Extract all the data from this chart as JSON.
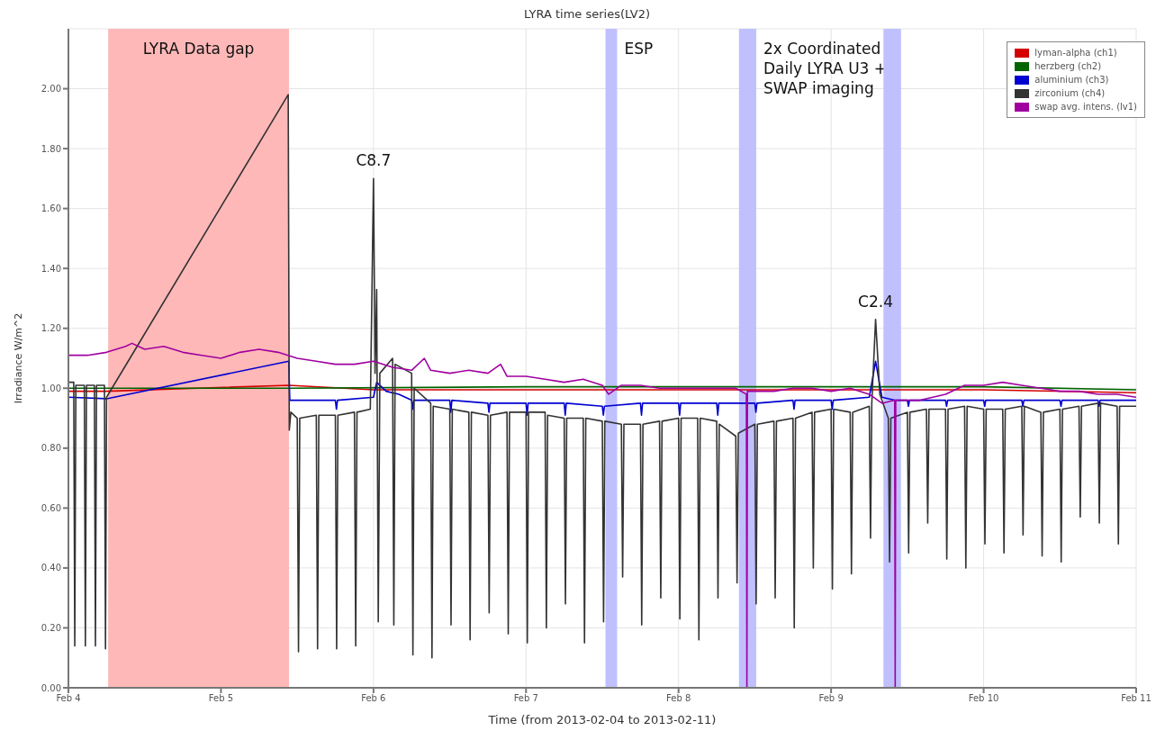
{
  "chart_data": {
    "type": "line",
    "title": "LYRA time series(LV2)",
    "xlabel": "Time (from 2013-02-04 to 2013-02-11)",
    "ylabel": "Irradiance W/m^2",
    "xlim": [
      "2013-02-04",
      "2013-02-11"
    ],
    "xticks": [
      {
        "value": "2013-02-04",
        "label": "Feb 4"
      },
      {
        "value": "2013-02-05",
        "label": "Feb 5"
      },
      {
        "value": "2013-02-06",
        "label": "Feb 6"
      },
      {
        "value": "2013-02-07",
        "label": "Feb 7"
      },
      {
        "value": "2013-02-08",
        "label": "Feb 8"
      },
      {
        "value": "2013-02-09",
        "label": "Feb 9"
      },
      {
        "value": "2013-02-10",
        "label": "Feb 10"
      },
      {
        "value": "2013-02-11",
        "label": "Feb 11"
      }
    ],
    "ylim": [
      0,
      2.2
    ],
    "yticks": [
      {
        "value": 0,
        "label": "0.00"
      },
      {
        "value": 0.2,
        "label": "0.20"
      },
      {
        "value": 0.4,
        "label": "0.40"
      },
      {
        "value": 0.6,
        "label": "0.60"
      },
      {
        "value": 0.8,
        "label": "0.80"
      },
      {
        "value": 1,
        "label": "1.00"
      },
      {
        "value": 1.2,
        "label": "1.20"
      },
      {
        "value": 1.4,
        "label": "1.40"
      },
      {
        "value": 1.6,
        "label": "1.60"
      },
      {
        "value": 1.8,
        "label": "1.80"
      },
      {
        "value": 2,
        "label": "2.00"
      }
    ],
    "grid": true,
    "legend": "top right",
    "bands": [
      {
        "axis": "x",
        "from": "2013-02-04T06:15",
        "to": "2013-02-05T10:42",
        "label": "LYRA Data gap",
        "color": "#ffb8b8"
      },
      {
        "axis": "x",
        "from": "2013-02-07T12:30",
        "to": "2013-02-07T14:20",
        "label": "ESP",
        "color": "#c0c0ff"
      },
      {
        "axis": "x",
        "from": "2013-02-08T09:30",
        "to": "2013-02-08T12:13",
        "label": "2x Coordinated Daily LYRA U3 + SWAP imaging",
        "color": "#c0c0ff"
      },
      {
        "axis": "x",
        "from": "2013-02-09T08:14",
        "to": "2013-02-09T11:00",
        "label": null,
        "color": "#c0c0ff"
      }
    ],
    "annotations": [
      {
        "text": "C8.7",
        "x": "2013-02-06T00:00",
        "y": 1.7
      },
      {
        "text": "C2.4",
        "x": "2013-02-09T07:00",
        "y": 1.23
      }
    ],
    "series": [
      {
        "name": "lyman-alpha (ch1)",
        "color": "#d40000",
        "x": [
          "2013-02-04T00:00",
          "2013-02-04T06:00",
          "2013-02-05T10:40",
          "2013-02-06T00:00",
          "2013-02-08T00:00",
          "2013-02-09T00:00",
          "2013-02-10T00:00",
          "2013-02-11T00:00"
        ],
        "values": [
          0.99,
          0.99,
          1.01,
          0.995,
          0.995,
          0.995,
          0.995,
          0.985
        ]
      },
      {
        "name": "herzberg (ch2)",
        "color": "#006400",
        "x": [
          "2013-02-04T00:00",
          "2013-02-05T10:40",
          "2013-02-07T00:00",
          "2013-02-09T00:00",
          "2013-02-10T00:00",
          "2013-02-11T00:00"
        ],
        "values": [
          1.0,
          1.0,
          1.005,
          1.005,
          1.005,
          0.995
        ]
      },
      {
        "name": "aluminium (ch3)",
        "color": "#0000d0",
        "x": [
          "2013-02-04T00:00",
          "2013-02-04T06:00",
          "2013-02-05T10:40",
          "2013-02-05T10:50",
          "2013-02-05T12:00",
          "2013-02-05T18:00",
          "2013-02-05T18:10",
          "2013-02-05T18:20",
          "2013-02-06T00:00",
          "2013-02-06T00:30",
          "2013-02-06T02:00",
          "2013-02-06T04:00",
          "2013-02-06T06:00",
          "2013-02-06T06:10",
          "2013-02-06T06:20",
          "2013-02-06T12:00",
          "2013-02-06T12:10",
          "2013-02-06T12:20",
          "2013-02-06T18:00",
          "2013-02-06T18:10",
          "2013-02-06T18:20",
          "2013-02-07T00:00",
          "2013-02-07T00:10",
          "2013-02-07T00:20",
          "2013-02-07T06:00",
          "2013-02-07T06:10",
          "2013-02-07T06:20",
          "2013-02-07T12:00",
          "2013-02-07T12:10",
          "2013-02-07T12:20",
          "2013-02-07T18:00",
          "2013-02-07T18:10",
          "2013-02-07T18:20",
          "2013-02-08T00:00",
          "2013-02-08T00:10",
          "2013-02-08T00:20",
          "2013-02-08T06:00",
          "2013-02-08T06:10",
          "2013-02-08T06:20",
          "2013-02-08T12:00",
          "2013-02-08T12:10",
          "2013-02-08T12:20",
          "2013-02-08T18:00",
          "2013-02-08T18:10",
          "2013-02-08T18:20",
          "2013-02-09T00:00",
          "2013-02-09T00:10",
          "2013-02-09T00:20",
          "2013-02-09T06:00",
          "2013-02-09T07:00",
          "2013-02-09T08:00",
          "2013-02-09T10:00",
          "2013-02-09T12:00",
          "2013-02-09T12:10",
          "2013-02-09T12:20",
          "2013-02-09T18:00",
          "2013-02-09T18:10",
          "2013-02-09T18:20",
          "2013-02-10T00:00",
          "2013-02-10T00:10",
          "2013-02-10T00:20",
          "2013-02-10T06:00",
          "2013-02-10T06:10",
          "2013-02-10T06:20",
          "2013-02-10T12:00",
          "2013-02-10T12:10",
          "2013-02-10T12:20",
          "2013-02-10T18:00",
          "2013-02-10T18:10",
          "2013-02-10T18:20",
          "2013-02-11T00:00"
        ],
        "values": [
          0.97,
          0.965,
          1.09,
          0.96,
          0.96,
          0.96,
          0.93,
          0.96,
          0.97,
          1.02,
          0.99,
          0.98,
          0.96,
          0.93,
          0.96,
          0.96,
          0.92,
          0.96,
          0.95,
          0.92,
          0.95,
          0.95,
          0.91,
          0.95,
          0.95,
          0.91,
          0.95,
          0.94,
          0.91,
          0.94,
          0.95,
          0.91,
          0.95,
          0.95,
          0.91,
          0.95,
          0.95,
          0.91,
          0.95,
          0.95,
          0.92,
          0.95,
          0.96,
          0.93,
          0.96,
          0.96,
          0.93,
          0.96,
          0.97,
          1.09,
          0.97,
          0.96,
          0.96,
          0.94,
          0.96,
          0.96,
          0.94,
          0.96,
          0.96,
          0.94,
          0.96,
          0.96,
          0.94,
          0.96,
          0.96,
          0.94,
          0.96,
          0.96,
          0.94,
          0.96,
          0.96
        ]
      },
      {
        "name": "zirconium (ch4)",
        "color": "#333333",
        "x": [
          "2013-02-04T00:00",
          "2013-02-04T00:50",
          "2013-02-04T01:00",
          "2013-02-04T01:10",
          "2013-02-04T02:30",
          "2013-02-04T02:40",
          "2013-02-04T02:50",
          "2013-02-04T04:05",
          "2013-02-04T04:15",
          "2013-02-04T04:25",
          "2013-02-04T05:40",
          "2013-02-04T05:50",
          "2013-02-04T06:00",
          "2013-02-05T10:35",
          "2013-02-05T10:45",
          "2013-02-05T11:00",
          "2013-02-05T12:00",
          "2013-02-05T12:12",
          "2013-02-05T12:24",
          "2013-02-05T15:00",
          "2013-02-05T15:12",
          "2013-02-05T15:24",
          "2013-02-05T18:00",
          "2013-02-05T18:12",
          "2013-02-05T18:24",
          "2013-02-05T21:00",
          "2013-02-05T21:12",
          "2013-02-05T21:24",
          "2013-02-05T23:30",
          "2013-02-06T00:00",
          "2013-02-06T00:15",
          "2013-02-06T00:30",
          "2013-02-06T00:45",
          "2013-02-06T01:00",
          "2013-02-06T03:00",
          "2013-02-06T03:12",
          "2013-02-06T03:24",
          "2013-02-06T06:00",
          "2013-02-06T06:12",
          "2013-02-06T06:24",
          "2013-02-06T09:00",
          "2013-02-06T09:12",
          "2013-02-06T09:24",
          "2013-02-06T12:00",
          "2013-02-06T12:12",
          "2013-02-06T12:24",
          "2013-02-06T15:00",
          "2013-02-06T15:12",
          "2013-02-06T15:24",
          "2013-02-06T18:00",
          "2013-02-06T18:12",
          "2013-02-06T18:24",
          "2013-02-06T21:00",
          "2013-02-06T21:12",
          "2013-02-06T21:24",
          "2013-02-07T00:00",
          "2013-02-07T00:12",
          "2013-02-07T00:24",
          "2013-02-07T03:00",
          "2013-02-07T03:12",
          "2013-02-07T03:24",
          "2013-02-07T06:00",
          "2013-02-07T06:12",
          "2013-02-07T06:24",
          "2013-02-07T09:00",
          "2013-02-07T09:12",
          "2013-02-07T09:24",
          "2013-02-07T12:00",
          "2013-02-07T12:12",
          "2013-02-07T12:24",
          "2013-02-07T15:00",
          "2013-02-07T15:12",
          "2013-02-07T15:24",
          "2013-02-07T18:00",
          "2013-02-07T18:12",
          "2013-02-07T18:24",
          "2013-02-07T21:00",
          "2013-02-07T21:12",
          "2013-02-07T21:24",
          "2013-02-08T00:00",
          "2013-02-08T00:12",
          "2013-02-08T00:24",
          "2013-02-08T03:00",
          "2013-02-08T03:12",
          "2013-02-08T03:24",
          "2013-02-08T06:00",
          "2013-02-08T06:12",
          "2013-02-08T06:24",
          "2013-02-08T09:00",
          "2013-02-08T09:12",
          "2013-02-08T09:24",
          "2013-02-08T12:00",
          "2013-02-08T12:12",
          "2013-02-08T12:24",
          "2013-02-08T15:00",
          "2013-02-08T15:12",
          "2013-02-08T15:24",
          "2013-02-08T18:00",
          "2013-02-08T18:12",
          "2013-02-08T18:24",
          "2013-02-08T21:00",
          "2013-02-08T21:12",
          "2013-02-08T21:24",
          "2013-02-09T00:00",
          "2013-02-09T00:12",
          "2013-02-09T00:24",
          "2013-02-09T03:00",
          "2013-02-09T03:12",
          "2013-02-09T03:24",
          "2013-02-09T06:00",
          "2013-02-09T06:12",
          "2013-02-09T06:24",
          "2013-02-09T07:00",
          "2013-02-09T07:40",
          "2013-02-09T09:00",
          "2013-02-09T09:12",
          "2013-02-09T09:24",
          "2013-02-09T12:00",
          "2013-02-09T12:12",
          "2013-02-09T12:24",
          "2013-02-09T15:00",
          "2013-02-09T15:12",
          "2013-02-09T15:24",
          "2013-02-09T18:00",
          "2013-02-09T18:12",
          "2013-02-09T18:24",
          "2013-02-09T21:00",
          "2013-02-09T21:12",
          "2013-02-09T21:24",
          "2013-02-10T00:00",
          "2013-02-10T00:12",
          "2013-02-10T00:24",
          "2013-02-10T03:00",
          "2013-02-10T03:12",
          "2013-02-10T03:24",
          "2013-02-10T06:00",
          "2013-02-10T06:12",
          "2013-02-10T06:24",
          "2013-02-10T09:00",
          "2013-02-10T09:12",
          "2013-02-10T09:24",
          "2013-02-10T12:00",
          "2013-02-10T12:12",
          "2013-02-10T12:24",
          "2013-02-10T15:00",
          "2013-02-10T15:12",
          "2013-02-10T15:24",
          "2013-02-10T18:00",
          "2013-02-10T18:12",
          "2013-02-10T18:24",
          "2013-02-10T21:00",
          "2013-02-10T21:12",
          "2013-02-10T21:24",
          "2013-02-11T00:00"
        ],
        "values": [
          1.02,
          1.02,
          0.14,
          1.01,
          1.01,
          0.14,
          1.01,
          1.01,
          0.14,
          1.01,
          1.01,
          0.13,
          0.97,
          1.98,
          0.86,
          0.92,
          0.9,
          0.12,
          0.9,
          0.91,
          0.13,
          0.91,
          0.91,
          0.13,
          0.91,
          0.92,
          0.14,
          0.92,
          0.93,
          1.7,
          1.05,
          1.33,
          0.22,
          1.05,
          1.1,
          0.21,
          1.08,
          1.05,
          0.11,
          1.0,
          0.95,
          0.1,
          0.94,
          0.93,
          0.21,
          0.93,
          0.92,
          0.16,
          0.92,
          0.91,
          0.25,
          0.91,
          0.92,
          0.18,
          0.92,
          0.92,
          0.15,
          0.92,
          0.92,
          0.2,
          0.91,
          0.9,
          0.28,
          0.9,
          0.9,
          0.15,
          0.9,
          0.89,
          0.22,
          0.89,
          0.88,
          0.37,
          0.88,
          0.88,
          0.21,
          0.88,
          0.89,
          0.3,
          0.89,
          0.9,
          0.23,
          0.9,
          0.9,
          0.16,
          0.9,
          0.89,
          0.3,
          0.88,
          0.84,
          0.35,
          0.85,
          0.88,
          0.28,
          0.88,
          0.89,
          0.3,
          0.89,
          0.9,
          0.2,
          0.9,
          0.92,
          0.4,
          0.92,
          0.93,
          0.33,
          0.93,
          0.92,
          0.38,
          0.92,
          0.94,
          0.5,
          0.95,
          1.23,
          0.98,
          0.9,
          0.42,
          0.9,
          0.92,
          0.45,
          0.92,
          0.93,
          0.55,
          0.93,
          0.93,
          0.43,
          0.93,
          0.94,
          0.4,
          0.94,
          0.93,
          0.48,
          0.93,
          0.93,
          0.45,
          0.93,
          0.94,
          0.51,
          0.94,
          0.92,
          0.44,
          0.92,
          0.93,
          0.42,
          0.93,
          0.94,
          0.57,
          0.94,
          0.95,
          0.55,
          0.95,
          0.94,
          0.48,
          0.94,
          0.94
        ]
      },
      {
        "name": "swap avg. intens. (lv1)",
        "color": "#a000a0",
        "x": [
          "2013-02-04T00:00",
          "2013-02-04T03:00",
          "2013-02-04T06:00",
          "2013-02-04T09:00",
          "2013-02-04T10:00",
          "2013-02-04T12:00",
          "2013-02-04T15:00",
          "2013-02-04T18:00",
          "2013-02-04T21:00",
          "2013-02-05T00:00",
          "2013-02-05T03:00",
          "2013-02-05T06:00",
          "2013-02-05T09:00",
          "2013-02-05T12:00",
          "2013-02-05T15:00",
          "2013-02-05T18:00",
          "2013-02-05T21:00",
          "2013-02-06T00:00",
          "2013-02-06T03:00",
          "2013-02-06T06:00",
          "2013-02-06T08:00",
          "2013-02-06T09:00",
          "2013-02-06T12:00",
          "2013-02-06T15:00",
          "2013-02-06T18:00",
          "2013-02-06T20:00",
          "2013-02-06T21:00",
          "2013-02-07T00:00",
          "2013-02-07T03:00",
          "2013-02-07T06:00",
          "2013-02-07T09:00",
          "2013-02-07T12:00",
          "2013-02-07T13:00",
          "2013-02-07T15:00",
          "2013-02-07T18:00",
          "2013-02-07T21:00",
          "2013-02-08T00:00",
          "2013-02-08T03:00",
          "2013-02-08T06:00",
          "2013-02-08T09:00",
          "2013-02-08T10:40",
          "2013-02-08T10:45",
          "2013-02-08T10:50",
          "2013-02-08T15:00",
          "2013-02-08T18:00",
          "2013-02-08T21:00",
          "2013-02-09T00:00",
          "2013-02-09T03:00",
          "2013-02-09T06:00",
          "2013-02-09T08:00",
          "2013-02-09T10:00",
          "2013-02-09T10:05",
          "2013-02-09T10:10",
          "2013-02-09T14:00",
          "2013-02-09T18:00",
          "2013-02-09T21:00",
          "2013-02-10T00:00",
          "2013-02-10T03:00",
          "2013-02-10T06:00",
          "2013-02-10T09:00",
          "2013-02-10T12:00",
          "2013-02-10T15:00",
          "2013-02-10T18:00",
          "2013-02-10T21:00",
          "2013-02-11T00:00"
        ],
        "values": [
          1.11,
          1.11,
          1.12,
          1.14,
          1.15,
          1.13,
          1.14,
          1.12,
          1.11,
          1.1,
          1.12,
          1.13,
          1.12,
          1.1,
          1.09,
          1.08,
          1.08,
          1.09,
          1.07,
          1.06,
          1.1,
          1.06,
          1.05,
          1.06,
          1.05,
          1.08,
          1.04,
          1.04,
          1.03,
          1.02,
          1.03,
          1.01,
          0.98,
          1.01,
          1.01,
          1.0,
          1.0,
          1.0,
          1.0,
          1.0,
          0.98,
          0.0,
          0.99,
          0.99,
          1.0,
          1.0,
          0.99,
          1.0,
          0.98,
          0.95,
          0.96,
          0.0,
          0.96,
          0.96,
          0.98,
          1.01,
          1.01,
          1.02,
          1.01,
          1.0,
          0.99,
          0.99,
          0.98,
          0.98,
          0.97
        ]
      }
    ]
  }
}
